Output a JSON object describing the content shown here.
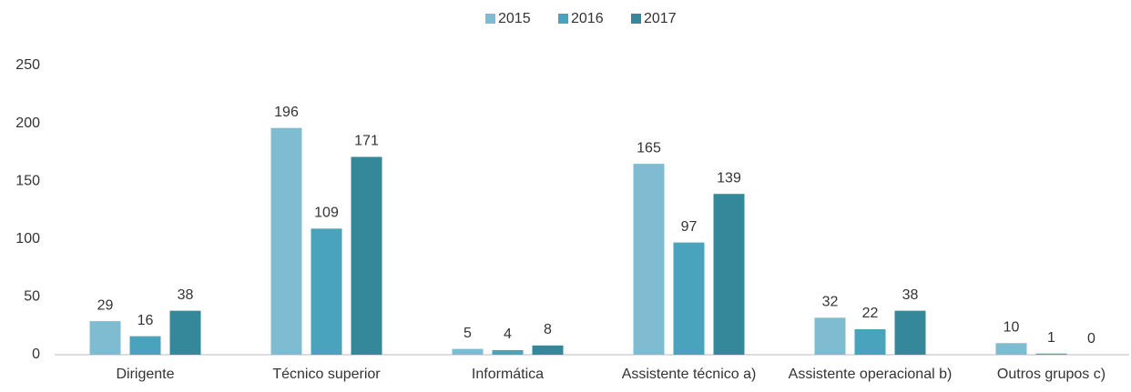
{
  "chart_data": {
    "type": "bar",
    "categories": [
      "Dirigente",
      "Técnico superior",
      "Informática",
      "Assistente técnico a)",
      "Assistente operacional b)",
      "Outros grupos c)"
    ],
    "series": [
      {
        "name": "2015",
        "color": "#7fbcd2",
        "values": [
          29,
          196,
          5,
          165,
          32,
          10
        ]
      },
      {
        "name": "2016",
        "color": "#4aa3bc",
        "values": [
          16,
          109,
          4,
          97,
          22,
          1
        ]
      },
      {
        "name": "2017",
        "color": "#35879a",
        "values": [
          38,
          171,
          8,
          139,
          38,
          0
        ]
      }
    ],
    "ylim": [
      0,
      250
    ],
    "yticks": [
      0,
      50,
      100,
      150,
      200,
      250
    ],
    "grid": false,
    "legend": "top"
  }
}
